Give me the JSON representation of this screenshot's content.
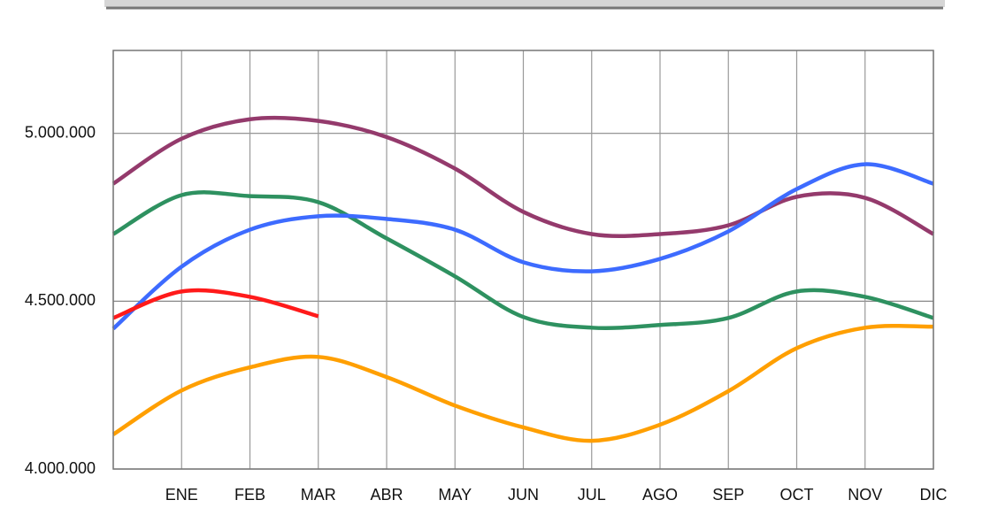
{
  "chart_data": {
    "type": "line",
    "categories": [
      null,
      "ENE",
      "FEB",
      "MAR",
      "ABR",
      "MAY",
      "JUN",
      "JUL",
      "AGO",
      "SEP",
      "OCT",
      "NOV",
      "DIC"
    ],
    "series": [
      {
        "color": "#943a6c",
        "values": [
          4850000,
          4984000,
          5042000,
          5037000,
          4989000,
          4895000,
          4766000,
          4700000,
          4700000,
          4726000,
          4811000,
          4808000,
          4700000
        ]
      },
      {
        "color": "#2e9160",
        "values": [
          4700000,
          4816000,
          4813000,
          4795000,
          4687000,
          4574000,
          4453000,
          4421000,
          4429000,
          4450000,
          4529000,
          4513000,
          4450000
        ]
      },
      {
        "color": "#3d6bff",
        "values": [
          4418000,
          4603000,
          4713000,
          4753000,
          4745000,
          4713000,
          4616000,
          4589000,
          4626000,
          4708000,
          4834000,
          4908000,
          4850000
        ]
      },
      {
        "color": "#ff1a1a",
        "values": [
          4450000,
          4529000,
          4513000,
          4455000,
          null,
          null,
          null,
          null,
          null,
          null,
          null,
          null,
          null
        ]
      },
      {
        "color": "#ff9f00",
        "values": [
          4103000,
          4234000,
          4303000,
          4334000,
          4274000,
          4189000,
          4124000,
          4084000,
          4132000,
          4232000,
          4360000,
          4421000,
          4424000
        ]
      }
    ],
    "ylim": [
      4000000,
      5247000
    ],
    "yticks": [
      {
        "value": 4000000,
        "label": "4.000.000"
      },
      {
        "value": 4500000,
        "label": "4.500.000"
      },
      {
        "value": 5000000,
        "label": "5.000.000"
      }
    ],
    "grid": true
  }
}
